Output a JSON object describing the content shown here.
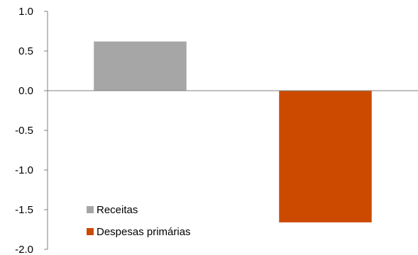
{
  "chart_data": {
    "type": "bar",
    "categories": [
      "Receitas",
      "Despesas primárias"
    ],
    "series": [
      {
        "name": "Receitas",
        "values": [
          0.62,
          null
        ],
        "color": "#a6a6a6"
      },
      {
        "name": "Despesas primárias",
        "values": [
          null,
          -1.66
        ],
        "color": "#cc4a00"
      }
    ],
    "ylim": [
      -2.0,
      1.0
    ],
    "yticks": [
      "1.0",
      "0.5",
      "0.0",
      "-0.5",
      "-1.0",
      "-1.5",
      "-2.0"
    ],
    "ytick_values": [
      1.0,
      0.5,
      0.0,
      -0.5,
      -1.0,
      -1.5,
      -2.0
    ],
    "grid": false,
    "legend_position": "bottom-left"
  }
}
